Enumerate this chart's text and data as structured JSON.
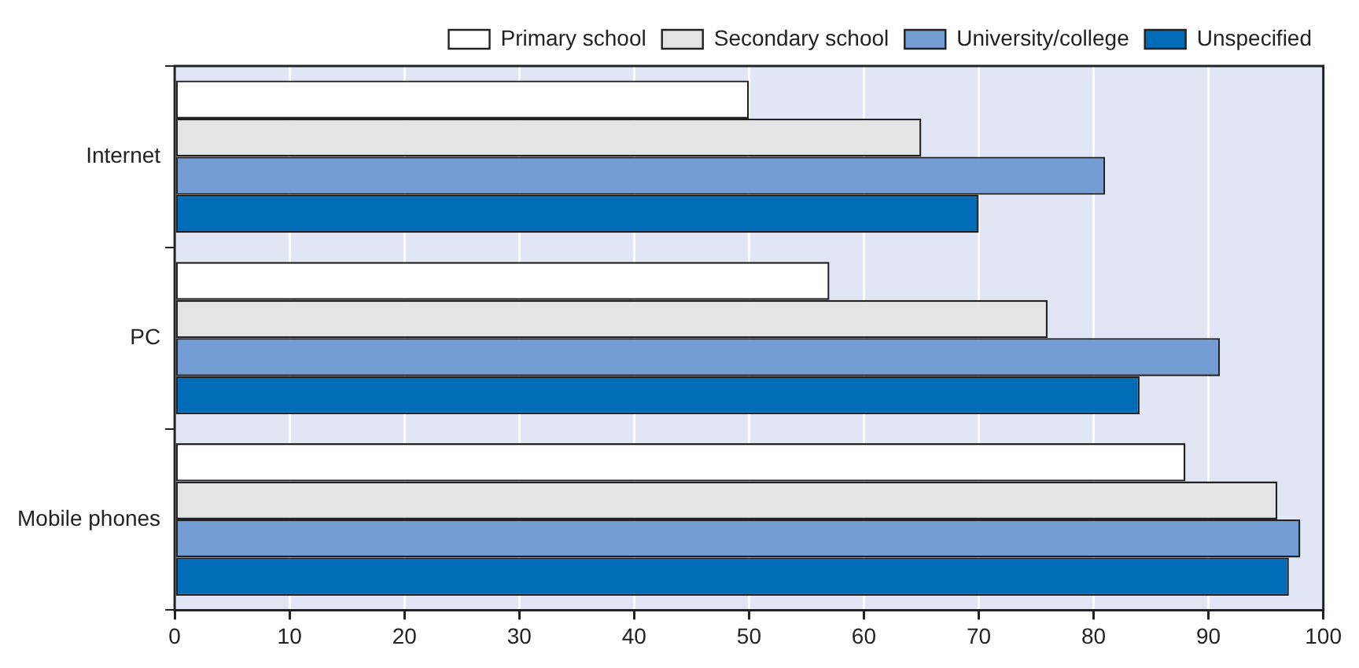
{
  "chart_data": {
    "type": "bar",
    "orientation": "horizontal",
    "categories": [
      "Internet",
      "PC",
      "Mobile phones"
    ],
    "series": [
      {
        "name": "Primary school",
        "color": "#ffffff",
        "values": [
          50,
          57,
          88
        ]
      },
      {
        "name": "Secondary school",
        "color": "#e4e4e4",
        "values": [
          65,
          76,
          96
        ]
      },
      {
        "name": "University/college",
        "color": "#739cd2",
        "values": [
          81,
          91,
          98
        ]
      },
      {
        "name": "Unspecified",
        "color": "#006cb8",
        "values": [
          70,
          84,
          97
        ]
      }
    ],
    "xlim": [
      0,
      100
    ],
    "xticks": [
      0,
      10,
      20,
      30,
      40,
      50,
      60,
      70,
      80,
      90,
      100
    ],
    "grid": "x",
    "legend": "top right"
  }
}
